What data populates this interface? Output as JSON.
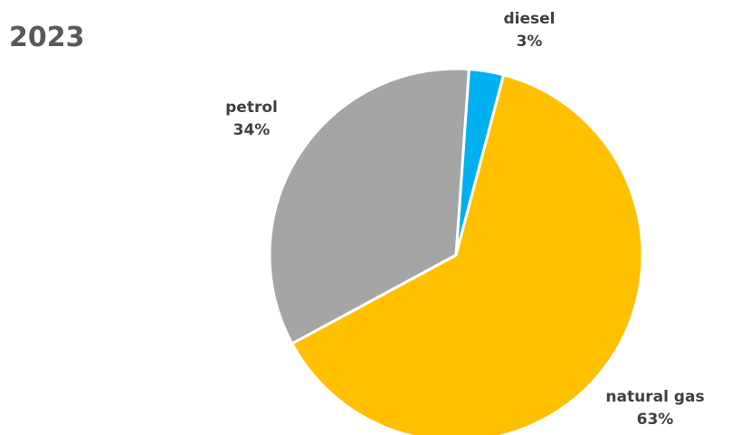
{
  "chart_data": {
    "type": "pie",
    "title": "2023",
    "slices": [
      {
        "label": "diesel",
        "value": 3,
        "value_label": "3%",
        "color": "#00B0F0"
      },
      {
        "label": "natural gas",
        "value": 63,
        "value_label": "63%",
        "color": "#FFC000"
      },
      {
        "label": "petrol",
        "value": 34,
        "value_label": "34%",
        "color": "#A5A5A5"
      }
    ],
    "start_angle_deg": 4,
    "direction": "clockwise",
    "slice_border_color": "#FFFFFF",
    "legend": "none"
  }
}
